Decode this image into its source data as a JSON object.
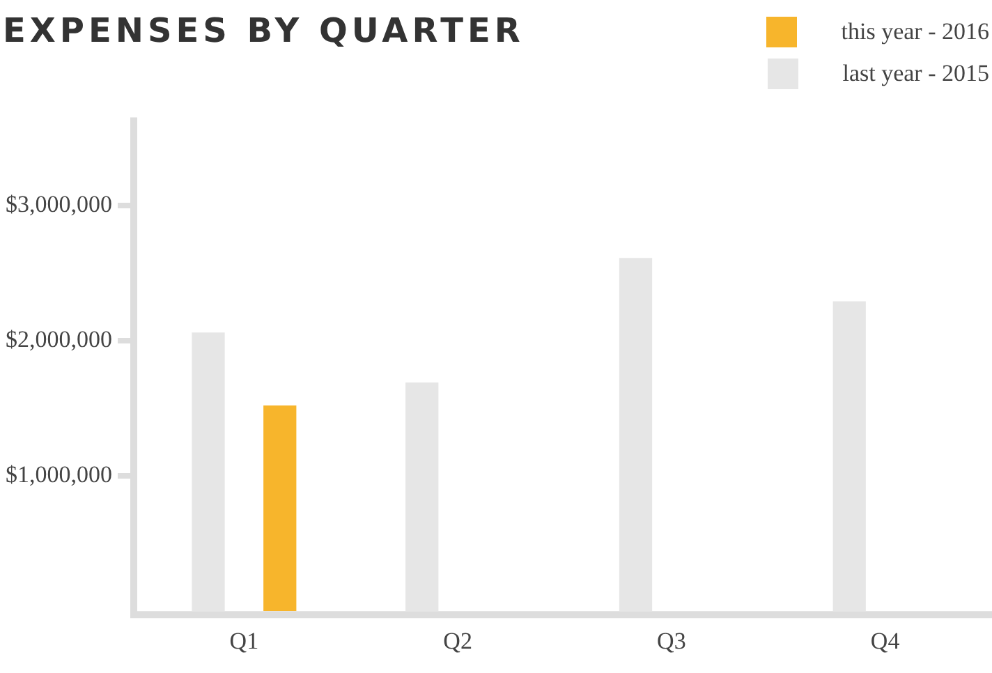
{
  "chart_data": {
    "type": "bar",
    "title": "EXPENSES BY QUARTER",
    "categories": [
      "Q1",
      "Q2",
      "Q3",
      "Q4"
    ],
    "series": [
      {
        "name": "last year - 2015",
        "color": "#e6e6e6",
        "values": [
          2060000,
          1690000,
          2610000,
          2290000
        ]
      },
      {
        "name": "this year - 2016",
        "color": "#f7b52c",
        "values": [
          1520000,
          0,
          0,
          0
        ]
      }
    ],
    "ylim": [
      0,
      3650000
    ],
    "yticks": [
      {
        "value": 1000000,
        "label": "$1,000,000"
      },
      {
        "value": 2000000,
        "label": "$2,000,000"
      },
      {
        "value": 3000000,
        "label": "$3,000,000"
      }
    ],
    "grid": false,
    "legend": "top right"
  }
}
